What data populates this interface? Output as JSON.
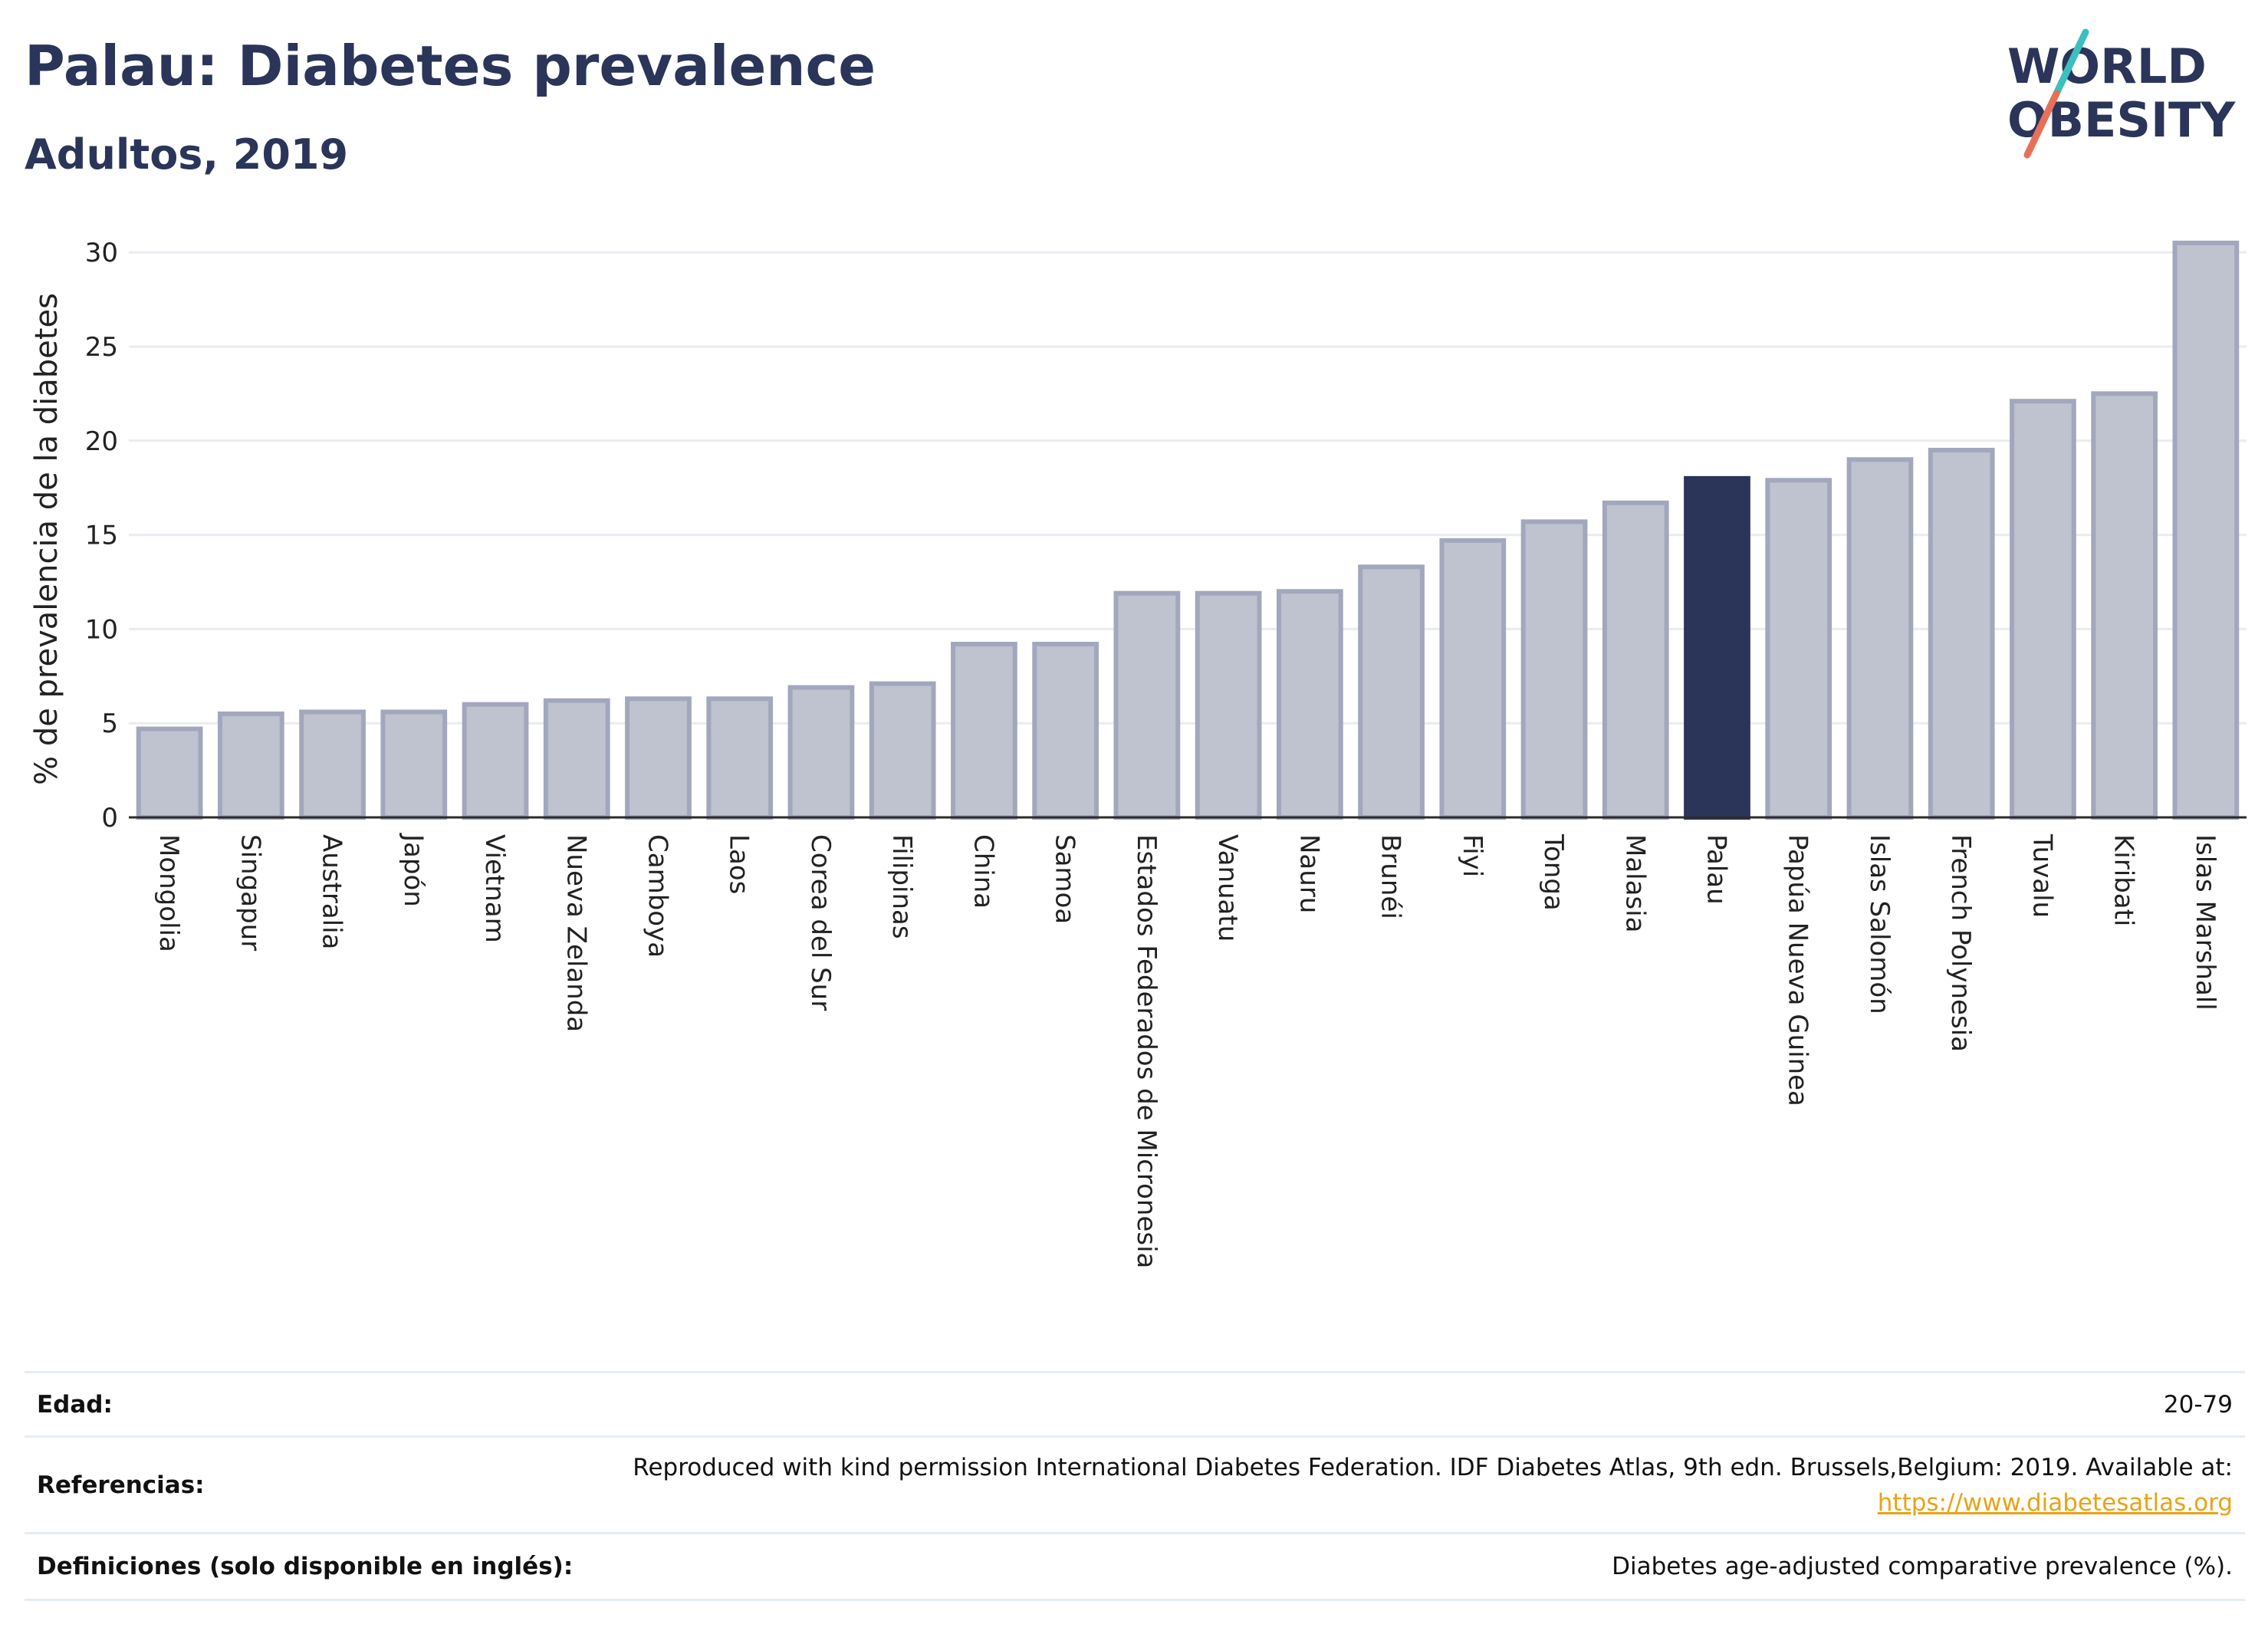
{
  "header": {
    "title": "Palau: Diabetes prevalence",
    "subtitle": "Adultos, 2019"
  },
  "logo": {
    "line1": "WORLD",
    "line2": "OBESITY",
    "colors": {
      "text": "#2b3459",
      "slash_teal": "#3bbfbf",
      "slash_coral": "#e8705a"
    }
  },
  "chart_data": {
    "type": "bar",
    "title": "Palau: Diabetes prevalence",
    "subtitle": "Adultos, 2019",
    "ylabel": "% de prevalencia de la diabetes",
    "xlabel": "",
    "ylim": [
      0,
      32
    ],
    "yticks": [
      0,
      5,
      10,
      15,
      20,
      25,
      30
    ],
    "grid": true,
    "highlight": "Palau",
    "colors": {
      "bar": "#bfc2cf",
      "bar_border": "#a2a7bc",
      "highlight": "#2b3459",
      "grid": "#e9ecf1"
    },
    "categories": [
      "Mongolia",
      "Singapur",
      "Australia",
      "Japón",
      "Vietnam",
      "Nueva Zelanda",
      "Camboya",
      "Laos",
      "Corea del Sur",
      "Filipinas",
      "China",
      "Samoa",
      "Estados Federados de Micronesia",
      "Vanuatu",
      "Nauru",
      "Brunéi",
      "Fiyi",
      "Tonga",
      "Malasia",
      "Palau",
      "Papúa Nueva Guinea",
      "Islas Salomón",
      "French Polynesia",
      "Tuvalu",
      "Kiribati",
      "Islas Marshall"
    ],
    "values": [
      4.7,
      5.5,
      5.6,
      5.6,
      6.0,
      6.2,
      6.3,
      6.3,
      6.9,
      7.1,
      9.2,
      9.2,
      11.9,
      11.9,
      12.0,
      13.3,
      14.7,
      15.7,
      16.7,
      18.0,
      17.9,
      19.0,
      19.5,
      22.1,
      22.5,
      30.5
    ]
  },
  "info": {
    "rows": [
      {
        "label": "Edad:",
        "value": "20-79"
      },
      {
        "label": "Referencias:",
        "value": "Reproduced with kind permission International Diabetes Federation. IDF Diabetes Atlas, 9th edn. Brussels,Belgium: 2019. Available at:",
        "link": "https://www.diabetesatlas.org"
      },
      {
        "label": "Definiciones (solo disponible en inglés):",
        "value": "Diabetes age-adjusted comparative prevalence (%)."
      }
    ]
  }
}
